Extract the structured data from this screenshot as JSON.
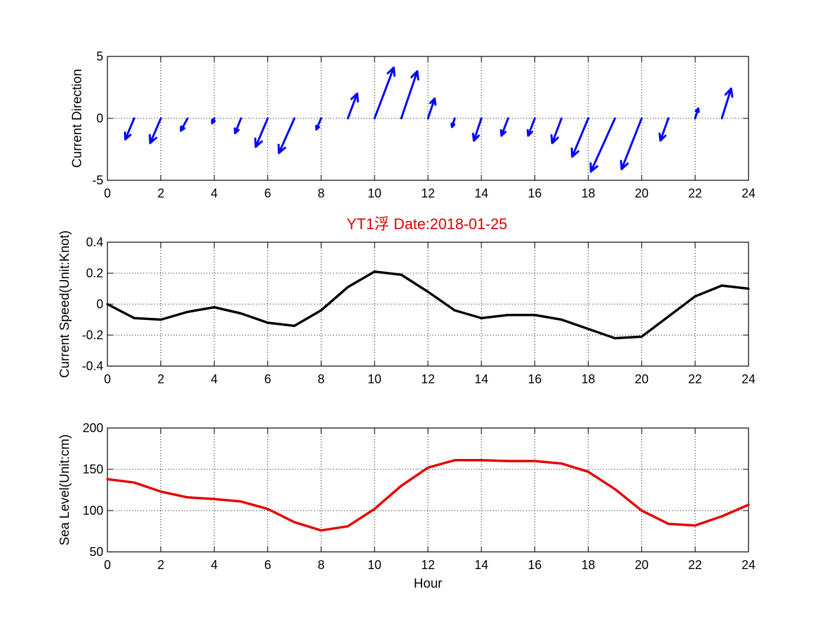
{
  "figure": {
    "title": "YT1浮    Date:2018-01-25",
    "title_color": "#dd0000"
  },
  "chart_data": [
    {
      "type": "quiver",
      "ylabel": "Current Direction",
      "xlabel": "",
      "xlim": [
        0,
        24
      ],
      "ylim": [
        -5,
        5
      ],
      "xticks": [
        "0",
        "2",
        "4",
        "6",
        "8",
        "10",
        "12",
        "14",
        "16",
        "18",
        "20",
        "22",
        "24"
      ],
      "yticks": [
        "-5",
        "0",
        "5"
      ],
      "ytick_values": [
        -5,
        0,
        5
      ],
      "grid": true,
      "color": "#0000ff",
      "x": [
        1,
        2,
        3,
        4,
        5,
        6,
        7,
        8,
        9,
        10,
        11,
        12,
        13,
        14,
        15,
        16,
        17,
        18,
        19,
        20,
        21,
        22,
        23
      ],
      "u": [
        -0.33,
        -0.4,
        -0.25,
        -0.08,
        -0.22,
        -0.45,
        -0.58,
        -0.18,
        0.35,
        0.72,
        0.6,
        0.25,
        -0.1,
        -0.28,
        -0.25,
        -0.25,
        -0.35,
        -0.6,
        -0.9,
        -0.75,
        -0.3,
        0.12,
        0.35
      ],
      "v": [
        -1.7,
        -2.0,
        -1.0,
        -0.4,
        -1.2,
        -2.3,
        -2.8,
        -0.9,
        2.0,
        4.1,
        3.8,
        1.6,
        -0.7,
        -1.8,
        -1.4,
        -1.4,
        -2.0,
        -3.1,
        -4.3,
        -4.1,
        -1.8,
        0.8,
        2.4
      ]
    },
    {
      "type": "line",
      "ylabel": "Current Speed(Unit:Knot)",
      "xlabel": "",
      "xlim": [
        0,
        24
      ],
      "ylim": [
        -0.4,
        0.4
      ],
      "xticks": [
        "0",
        "2",
        "4",
        "6",
        "8",
        "10",
        "12",
        "14",
        "16",
        "18",
        "20",
        "22",
        "24"
      ],
      "yticks": [
        "-0.4",
        "-0.2",
        "0",
        "0.2",
        "0.4"
      ],
      "ytick_values": [
        -0.4,
        -0.2,
        0,
        0.2,
        0.4
      ],
      "grid": true,
      "color": "#000000",
      "x": [
        0,
        1,
        2,
        3,
        4,
        5,
        6,
        7,
        8,
        9,
        10,
        11,
        12,
        13,
        14,
        15,
        16,
        17,
        18,
        19,
        20,
        21,
        22,
        23,
        24
      ],
      "y": [
        0.0,
        -0.09,
        -0.1,
        -0.05,
        -0.02,
        -0.06,
        -0.12,
        -0.14,
        -0.04,
        0.11,
        0.21,
        0.19,
        0.08,
        -0.04,
        -0.09,
        -0.07,
        -0.07,
        -0.1,
        -0.16,
        -0.22,
        -0.21,
        -0.08,
        0.05,
        0.12,
        0.1
      ]
    },
    {
      "type": "line",
      "ylabel": "Sea Level(Unit:cm)",
      "xlabel": "Hour",
      "xlim": [
        0,
        24
      ],
      "ylim": [
        50,
        200
      ],
      "xticks": [
        "0",
        "2",
        "4",
        "6",
        "8",
        "10",
        "12",
        "14",
        "16",
        "18",
        "20",
        "22",
        "24"
      ],
      "yticks": [
        "50",
        "100",
        "150",
        "200"
      ],
      "ytick_values": [
        50,
        100,
        150,
        200
      ],
      "grid": true,
      "color": "#e60000",
      "x": [
        0,
        1,
        2,
        3,
        4,
        5,
        6,
        7,
        8,
        9,
        10,
        11,
        12,
        13,
        14,
        15,
        16,
        17,
        18,
        19,
        20,
        21,
        22,
        23,
        24
      ],
      "y": [
        138,
        134,
        123,
        116,
        114,
        111,
        102,
        86,
        76,
        81,
        102,
        130,
        152,
        161,
        161,
        160,
        160,
        157,
        147,
        126,
        100,
        84,
        82,
        93,
        107
      ]
    }
  ]
}
